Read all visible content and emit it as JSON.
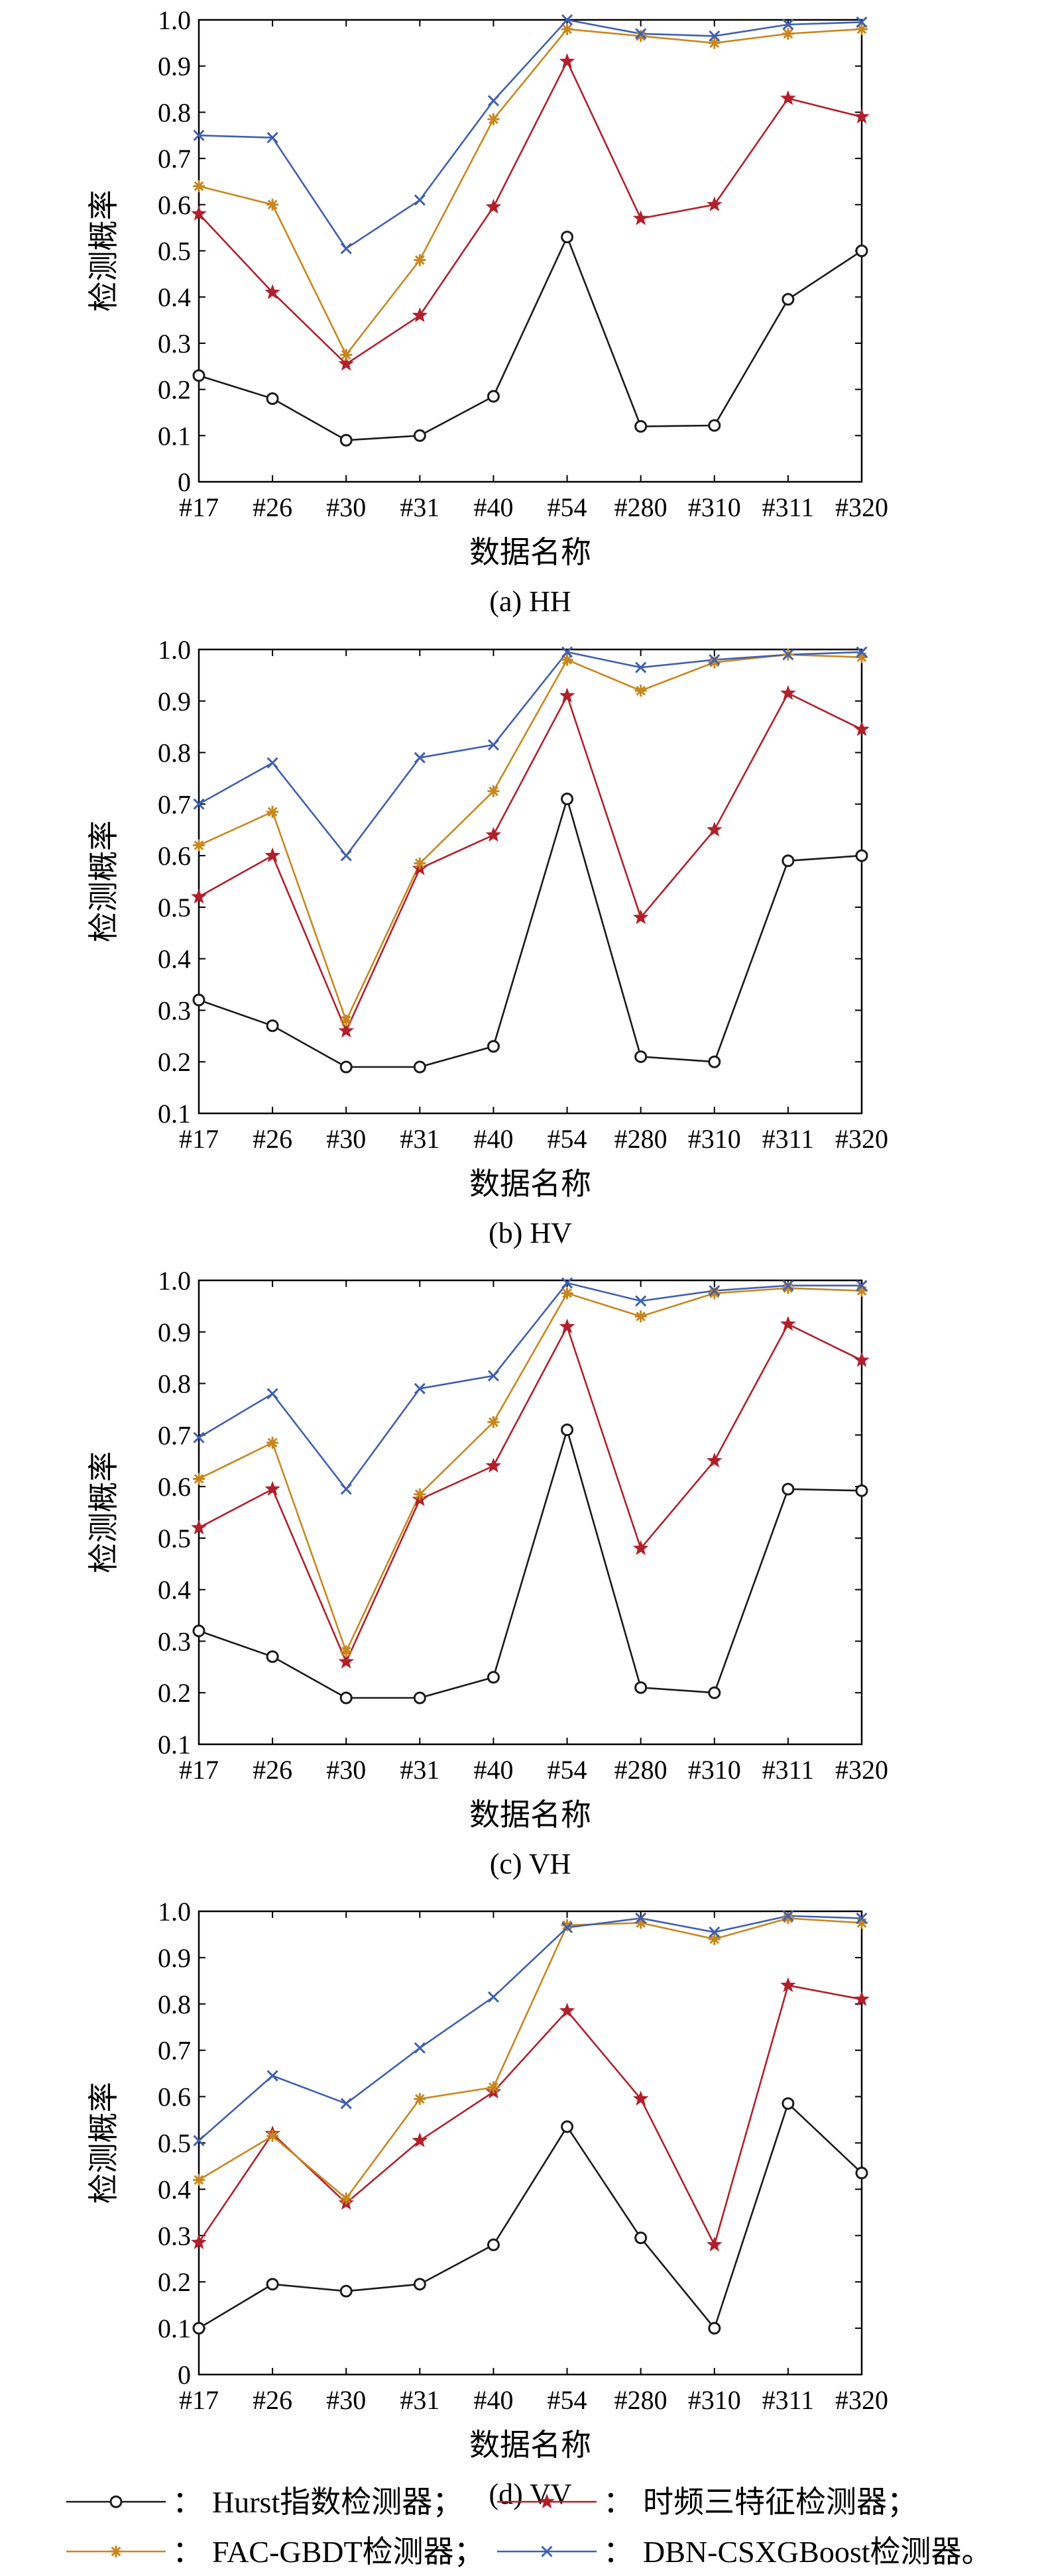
{
  "colors": {
    "Hurst指数检测器": "#1a1a1a",
    "时频三特征检测器": "#b0202c",
    "FAC-GBDT检测器": "#c8871e",
    "DBN-CSXGBoost检测器": "#4060b0"
  },
  "legend": [
    {
      "marker": "circle",
      "separator": "：",
      "label": "Hurst指数检测器；"
    },
    {
      "marker": "star",
      "separator": "：",
      "label": "时频三特征检测器；"
    },
    {
      "marker": "asterisk",
      "separator": "：",
      "label": "FAC-GBDT检测器；"
    },
    {
      "marker": "x",
      "separator": "：",
      "label": "DBN-CSXGBoost检测器。"
    }
  ],
  "chart_data": [
    {
      "type": "line",
      "caption": "(a) HH",
      "xlabel": "数据名称",
      "ylabel": "检测概率",
      "ylim": [
        0,
        1.0
      ],
      "yticks": [
        "0",
        "0.1",
        "0.2",
        "0.3",
        "0.4",
        "0.5",
        "0.6",
        "0.7",
        "0.8",
        "0.9",
        "1.0"
      ],
      "categories": [
        "#17",
        "#26",
        "#30",
        "#31",
        "#40",
        "#54",
        "#280",
        "#310",
        "#311",
        "#320"
      ],
      "series": [
        {
          "name": "Hurst指数检测器",
          "marker": "circle",
          "values": [
            0.23,
            0.18,
            0.09,
            0.1,
            0.185,
            0.53,
            0.12,
            0.122,
            0.395,
            0.5
          ]
        },
        {
          "name": "时频三特征检测器",
          "marker": "star",
          "values": [
            0.58,
            0.41,
            0.255,
            0.36,
            0.595,
            0.91,
            0.57,
            0.6,
            0.83,
            0.79
          ]
        },
        {
          "name": "FAC-GBDT检测器",
          "marker": "asterisk",
          "values": [
            0.64,
            0.6,
            0.275,
            0.48,
            0.785,
            0.98,
            0.965,
            0.95,
            0.97,
            0.98
          ]
        },
        {
          "name": "DBN-CSXGBoost检测器",
          "marker": "x",
          "values": [
            0.75,
            0.745,
            0.505,
            0.61,
            0.825,
            1.0,
            0.97,
            0.965,
            0.99,
            0.995
          ]
        }
      ]
    },
    {
      "type": "line",
      "caption": "(b) HV",
      "xlabel": "数据名称",
      "ylabel": "检测概率",
      "ylim": [
        0.1,
        1.0
      ],
      "yticks": [
        "0.1",
        "0.2",
        "0.3",
        "0.4",
        "0.5",
        "0.6",
        "0.7",
        "0.8",
        "0.9",
        "1.0"
      ],
      "categories": [
        "#17",
        "#26",
        "#30",
        "#31",
        "#40",
        "#54",
        "#280",
        "#310",
        "#311",
        "#320"
      ],
      "series": [
        {
          "name": "Hurst指数检测器",
          "marker": "circle",
          "values": [
            0.32,
            0.27,
            0.19,
            0.19,
            0.23,
            0.71,
            0.21,
            0.2,
            0.59,
            0.6
          ]
        },
        {
          "name": "时频三特征检测器",
          "marker": "star",
          "values": [
            0.52,
            0.6,
            0.26,
            0.575,
            0.64,
            0.91,
            0.48,
            0.65,
            0.915,
            0.845
          ]
        },
        {
          "name": "FAC-GBDT检测器",
          "marker": "asterisk",
          "values": [
            0.62,
            0.685,
            0.28,
            0.585,
            0.725,
            0.98,
            0.92,
            0.975,
            0.99,
            0.985
          ]
        },
        {
          "name": "DBN-CSXGBoost检测器",
          "marker": "x",
          "values": [
            0.7,
            0.78,
            0.6,
            0.79,
            0.815,
            0.995,
            0.965,
            0.98,
            0.99,
            0.995
          ]
        }
      ]
    },
    {
      "type": "line",
      "caption": "(c) VH",
      "xlabel": "数据名称",
      "ylabel": "检测概率",
      "ylim": [
        0.1,
        1.0
      ],
      "yticks": [
        "0.1",
        "0.2",
        "0.3",
        "0.4",
        "0.5",
        "0.6",
        "0.7",
        "0.8",
        "0.9",
        "1.0"
      ],
      "categories": [
        "#17",
        "#26",
        "#30",
        "#31",
        "#40",
        "#54",
        "#280",
        "#310",
        "#311",
        "#320"
      ],
      "series": [
        {
          "name": "Hurst指数检测器",
          "marker": "circle",
          "values": [
            0.32,
            0.27,
            0.19,
            0.19,
            0.23,
            0.71,
            0.21,
            0.2,
            0.595,
            0.592
          ]
        },
        {
          "name": "时频三特征检测器",
          "marker": "star",
          "values": [
            0.52,
            0.595,
            0.26,
            0.575,
            0.64,
            0.91,
            0.48,
            0.65,
            0.915,
            0.845
          ]
        },
        {
          "name": "FAC-GBDT检测器",
          "marker": "asterisk",
          "values": [
            0.615,
            0.685,
            0.28,
            0.585,
            0.725,
            0.975,
            0.93,
            0.975,
            0.985,
            0.98
          ]
        },
        {
          "name": "DBN-CSXGBoost检测器",
          "marker": "x",
          "values": [
            0.695,
            0.78,
            0.595,
            0.79,
            0.815,
            0.995,
            0.96,
            0.98,
            0.99,
            0.99
          ]
        }
      ]
    },
    {
      "type": "line",
      "caption": "(d) VV",
      "xlabel": "数据名称",
      "ylabel": "检测概率",
      "ylim": [
        0,
        1.0
      ],
      "yticks": [
        "0",
        "0.1",
        "0.2",
        "0.3",
        "0.4",
        "0.5",
        "0.6",
        "0.7",
        "0.8",
        "0.9",
        "1.0"
      ],
      "categories": [
        "#17",
        "#26",
        "#30",
        "#31",
        "#40",
        "#54",
        "#280",
        "#310",
        "#311",
        "#320"
      ],
      "series": [
        {
          "name": "Hurst指数检测器",
          "marker": "circle",
          "values": [
            0.1,
            0.195,
            0.18,
            0.195,
            0.28,
            0.535,
            0.295,
            0.1,
            0.585,
            0.435
          ]
        },
        {
          "name": "时频三特征检测器",
          "marker": "star",
          "values": [
            0.285,
            0.52,
            0.37,
            0.505,
            0.61,
            0.785,
            0.595,
            0.28,
            0.84,
            0.81
          ]
        },
        {
          "name": "FAC-GBDT检测器",
          "marker": "asterisk",
          "values": [
            0.42,
            0.515,
            0.38,
            0.595,
            0.62,
            0.97,
            0.975,
            0.94,
            0.985,
            0.975
          ]
        },
        {
          "name": "DBN-CSXGBoost检测器",
          "marker": "x",
          "values": [
            0.505,
            0.645,
            0.585,
            0.705,
            0.815,
            0.965,
            0.985,
            0.955,
            0.99,
            0.985
          ]
        }
      ]
    }
  ]
}
